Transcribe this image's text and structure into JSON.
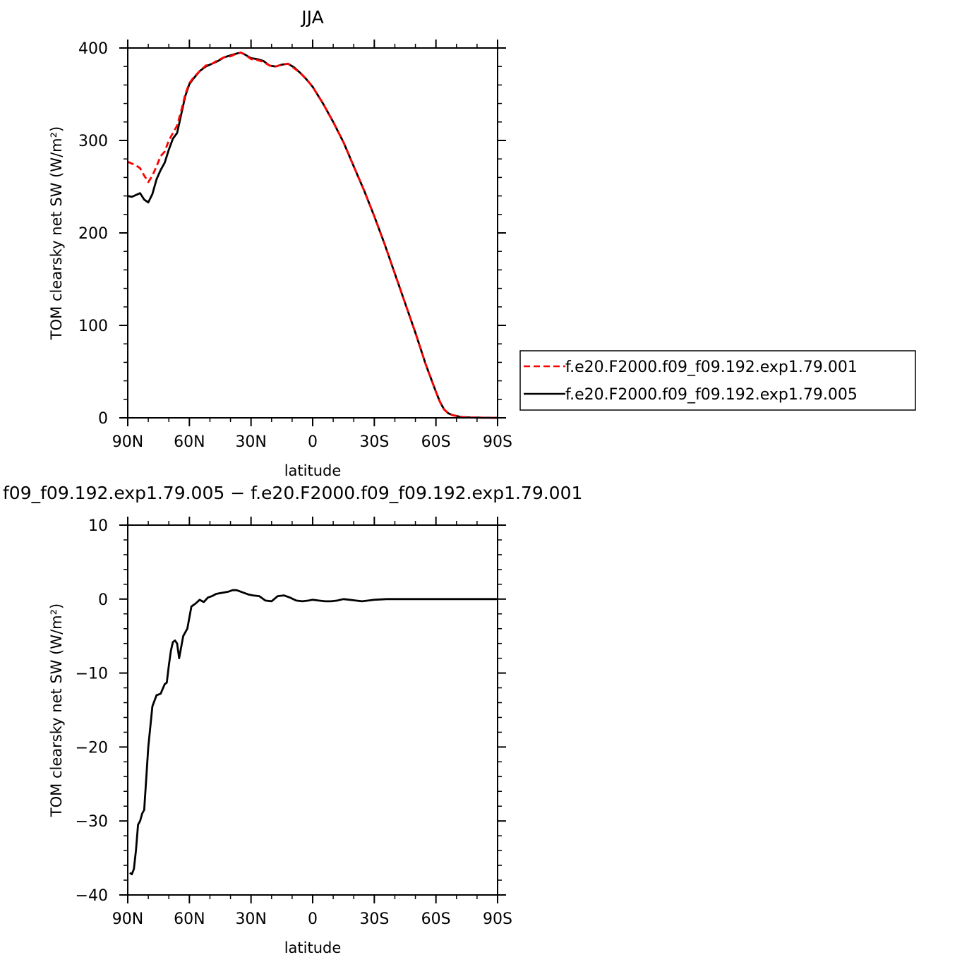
{
  "chart_data": [
    {
      "type": "line",
      "title": "JJA",
      "xlabel": "latitude",
      "ylabel": "TOM clearsky net SW (W/m²)",
      "x_unit": "degrees latitude (N positive)",
      "xlim": [
        90,
        -90
      ],
      "ylim": [
        0,
        400
      ],
      "x_ticks": [
        90,
        60,
        30,
        0,
        -30,
        -60,
        -90
      ],
      "x_tick_labels": [
        "90N",
        "60N",
        "30N",
        "0",
        "30S",
        "60S",
        "90S"
      ],
      "y_ticks": [
        0,
        100,
        200,
        300,
        400
      ],
      "y_tick_labels": [
        "0",
        "100",
        "200",
        "300",
        "400"
      ],
      "legend_position": "right",
      "series": [
        {
          "name": "f.e20.F2000.f09_f09.192.exp1.79.001",
          "color": "#ff0000",
          "dash": "dashed",
          "x": [
            90,
            88,
            86,
            84,
            82,
            80,
            78,
            76,
            74,
            72,
            70,
            68,
            66,
            64,
            62,
            60,
            58,
            55,
            52,
            49,
            46,
            43,
            40,
            37,
            35,
            33,
            30,
            27,
            24,
            21,
            18,
            15,
            12,
            9,
            6,
            3,
            0,
            -5,
            -10,
            -15,
            -20,
            -25,
            -30,
            -35,
            -40,
            -45,
            -50,
            -55,
            -60,
            -62,
            -64,
            -66,
            -68,
            -70,
            -72,
            -75,
            -80,
            -85,
            -90
          ],
          "values": [
            277,
            275,
            273,
            270,
            262,
            255,
            262,
            272,
            283,
            288,
            300,
            308,
            316,
            332,
            350,
            362,
            368,
            375,
            381,
            383,
            387,
            390,
            391,
            394,
            395,
            393,
            388,
            387,
            385,
            381,
            380,
            382,
            383,
            378,
            373,
            366,
            358,
            340,
            320,
            298,
            272,
            246,
            218,
            188,
            156,
            124,
            92,
            58,
            28,
            17,
            9,
            5,
            3,
            2,
            1,
            0.5,
            0.2,
            0.1,
            0
          ]
        },
        {
          "name": "f.e20.F2000.f09_f09.192.exp1.79.005",
          "color": "#000000",
          "dash": "solid",
          "x": [
            90,
            88,
            86,
            84,
            82,
            80,
            78,
            76,
            74,
            72,
            70,
            68,
            66,
            64,
            62,
            60,
            58,
            55,
            52,
            49,
            46,
            43,
            40,
            37,
            35,
            33,
            30,
            27,
            24,
            21,
            18,
            15,
            12,
            9,
            6,
            3,
            0,
            -5,
            -10,
            -15,
            -20,
            -25,
            -30,
            -35,
            -40,
            -45,
            -50,
            -55,
            -60,
            -62,
            -64,
            -66,
            -68,
            -70,
            -72,
            -75,
            -80,
            -85,
            -90
          ],
          "values": [
            240,
            239,
            241,
            243,
            236,
            233,
            242,
            258,
            268,
            276,
            290,
            302,
            308,
            328,
            348,
            361,
            367,
            375,
            380,
            383,
            386,
            390,
            392,
            394,
            395,
            393,
            389,
            388,
            386,
            381,
            380,
            382,
            383,
            379,
            373,
            366,
            358,
            340,
            320,
            298,
            272,
            246,
            218,
            188,
            156,
            124,
            92,
            58,
            28,
            17,
            9,
            5,
            3,
            2,
            1,
            0.5,
            0.2,
            0.1,
            0
          ]
        }
      ]
    },
    {
      "type": "line",
      "title": "f09_f09.192.exp1.79.005 − f.e20.F2000.f09_f09.192.exp1.79.001",
      "xlabel": "latitude",
      "ylabel": "TOM clearsky net SW (W/m²)",
      "x_unit": "degrees latitude (N positive)",
      "xlim": [
        90,
        -90
      ],
      "ylim": [
        -40,
        10
      ],
      "x_ticks": [
        90,
        60,
        30,
        0,
        -30,
        -60,
        -90
      ],
      "x_tick_labels": [
        "90N",
        "60N",
        "30N",
        "0",
        "30S",
        "60S",
        "90S"
      ],
      "y_ticks": [
        -40,
        -30,
        -20,
        -10,
        0,
        10
      ],
      "y_tick_labels": [
        "−40",
        "−30",
        "−20",
        "−10",
        "0",
        "10"
      ],
      "series": [
        {
          "name": "",
          "color": "#000000",
          "dash": "solid",
          "x": [
            89,
            88,
            87,
            86,
            85,
            84,
            83,
            82,
            80,
            78,
            76,
            74,
            72,
            71,
            70,
            69,
            68,
            67,
            66,
            65,
            63,
            61,
            59,
            57,
            55,
            53,
            51,
            49,
            47,
            45,
            43,
            41,
            39,
            37,
            35,
            33,
            31,
            29,
            26,
            23,
            20,
            17,
            14,
            11,
            8,
            5,
            2,
            0,
            -3,
            -6,
            -9,
            -12,
            -15,
            -18,
            -21,
            -24,
            -27,
            -30,
            -33,
            -36,
            -40,
            -45,
            -50,
            -55,
            -60,
            -65,
            -70,
            -75,
            -80,
            -85,
            -90
          ],
          "values": [
            -37,
            -37.2,
            -36.5,
            -34,
            -30.5,
            -30,
            -29,
            -28.5,
            -20,
            -14.5,
            -13,
            -12.8,
            -11.5,
            -11.3,
            -9,
            -7,
            -5.8,
            -5.6,
            -6,
            -8,
            -5,
            -4,
            -1,
            -0.6,
            -0.1,
            -0.4,
            0.2,
            0.4,
            0.7,
            0.8,
            0.9,
            1.0,
            1.2,
            1.2,
            1.0,
            0.8,
            0.6,
            0.5,
            0.4,
            -0.2,
            -0.3,
            0.4,
            0.5,
            0.2,
            -0.2,
            -0.3,
            -0.2,
            -0.1,
            -0.2,
            -0.3,
            -0.3,
            -0.2,
            0.0,
            -0.1,
            -0.2,
            -0.3,
            -0.2,
            -0.1,
            -0.05,
            0.0,
            0.0,
            0.0,
            0.0,
            0.0,
            0.0,
            0.0,
            0.0,
            0.0,
            0.0,
            0.0,
            0.0
          ]
        }
      ]
    }
  ]
}
